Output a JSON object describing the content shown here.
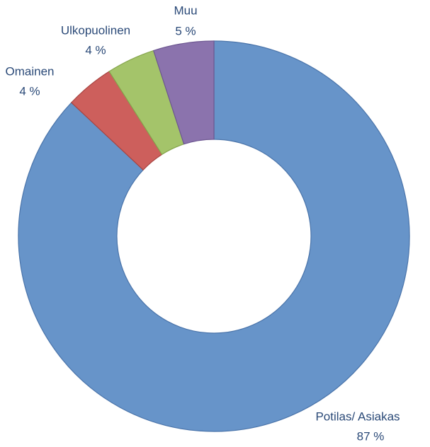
{
  "chart_data": {
    "type": "donut",
    "categories": [
      "Potilas/ Asiakas",
      "Omainen",
      "Ulkopuolinen",
      "Muu"
    ],
    "values": [
      87,
      4,
      4,
      5
    ],
    "value_labels": [
      "87 %",
      "4 %",
      "4 %",
      "5 %"
    ],
    "colors": [
      "#6794c9",
      "#cd5f5c",
      "#a4c46a",
      "#8b73ad"
    ]
  }
}
